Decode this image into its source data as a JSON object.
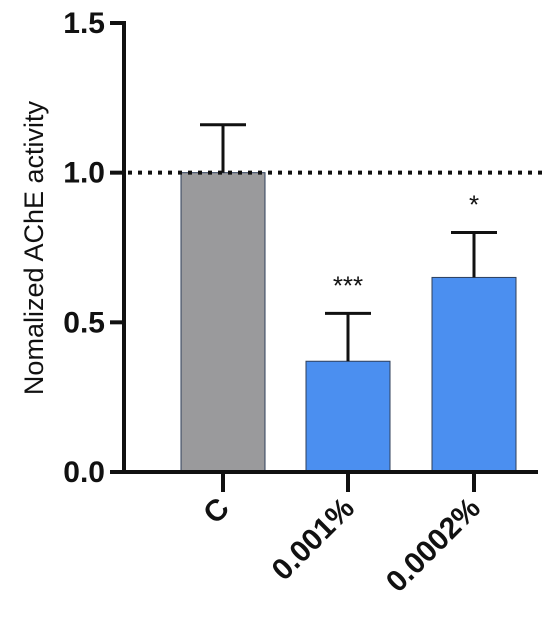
{
  "chart_data": {
    "type": "bar",
    "categories": [
      "C",
      "0.001%",
      "0.0002%"
    ],
    "values": [
      1.0,
      0.37,
      0.65
    ],
    "error_upper": [
      1.16,
      0.53,
      0.8
    ],
    "significance": [
      "",
      "***",
      "*"
    ],
    "bar_colors": [
      "#9a9a9c",
      "#4b8ff0",
      "#4b8ff0"
    ],
    "reference_line": 1.0,
    "ylabel": "Nomalized AChE activity",
    "xlabel": "",
    "ylim": [
      0,
      1.5
    ],
    "yticks": [
      "0.0",
      "0.5",
      "1.0",
      "1.5"
    ],
    "grid": false
  }
}
